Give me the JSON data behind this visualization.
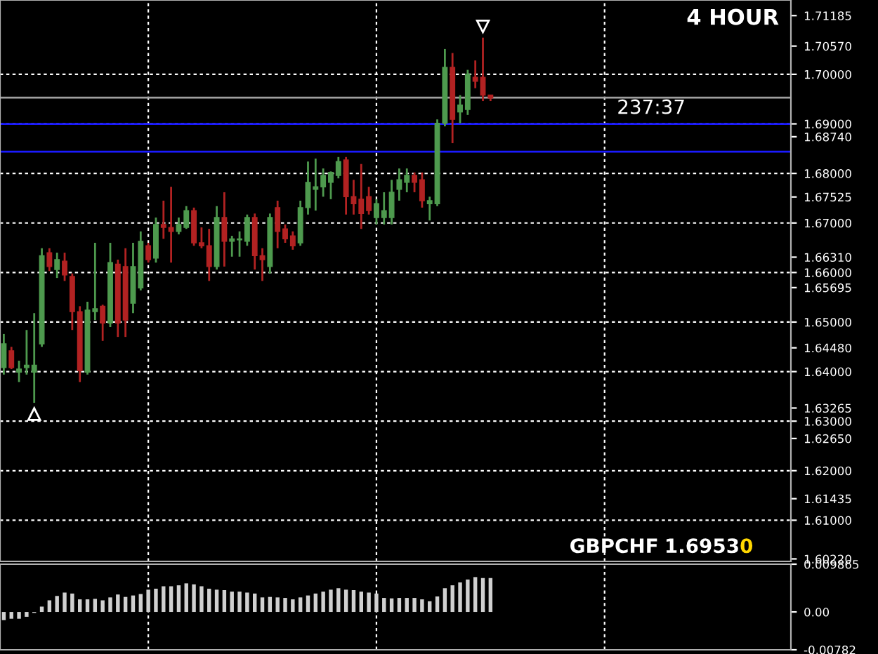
{
  "chart_data": [
    {
      "type": "candlestick",
      "title": "4 HOUR",
      "annotations": [
        "237:37",
        "GBPCHF",
        "1.69530"
      ],
      "categories": [
        null,
        null,
        null,
        null,
        null,
        null,
        null,
        null,
        null,
        null,
        null,
        null,
        null,
        null,
        null,
        null,
        null,
        null,
        null,
        null,
        null,
        null,
        null,
        null,
        null,
        null,
        null,
        null,
        null,
        null,
        null,
        null,
        null,
        null,
        null,
        null,
        null,
        null,
        null,
        null,
        null,
        null,
        null,
        null,
        null,
        null,
        null,
        null,
        null,
        null,
        null,
        null,
        null,
        null,
        null,
        null,
        null,
        null,
        null,
        null,
        null,
        null,
        null,
        null,
        null,
        null,
        null,
        null,
        null,
        null,
        null,
        null,
        null,
        null,
        null,
        null,
        null,
        null,
        null,
        null,
        null,
        null,
        null,
        null,
        null,
        null,
        null,
        null,
        null,
        null,
        null,
        null,
        null,
        null,
        null,
        null,
        null,
        null,
        null,
        null,
        null,
        null,
        null,
        null
      ],
      "ohlc": [
        [
          1.6408,
          1.6476,
          1.6394,
          1.6456
        ],
        [
          1.6442,
          1.645,
          1.6405,
          1.6408
        ],
        [
          1.6399,
          1.6422,
          1.6379,
          1.6405
        ],
        [
          1.6408,
          1.6484,
          1.6394,
          1.6413
        ],
        [
          1.6399,
          1.6518,
          1.6337,
          1.6413
        ],
        [
          1.6456,
          1.6649,
          1.645,
          1.6634
        ],
        [
          1.664,
          1.6649,
          1.6603,
          1.6612
        ],
        [
          1.6606,
          1.664,
          1.6589,
          1.6626
        ],
        [
          1.6623,
          1.664,
          1.6583,
          1.6595
        ],
        [
          1.6592,
          1.6598,
          1.6484,
          1.6521
        ],
        [
          1.6521,
          1.6532,
          1.6379,
          1.6402
        ],
        [
          1.6399,
          1.6541,
          1.6394,
          1.6524
        ],
        [
          1.6521,
          1.666,
          1.6504,
          1.6527
        ],
        [
          1.6532,
          1.6535,
          1.6462,
          1.6498
        ],
        [
          1.6498,
          1.666,
          1.649,
          1.662
        ],
        [
          1.6617,
          1.6626,
          1.647,
          1.6498
        ],
        [
          1.6612,
          1.6649,
          1.647,
          1.6504
        ],
        [
          1.6538,
          1.666,
          1.6518,
          1.6612
        ],
        [
          1.6569,
          1.6683,
          1.6564,
          1.6663
        ],
        [
          1.6654,
          1.666,
          1.662,
          1.6626
        ],
        [
          1.6629,
          1.6711,
          1.662,
          1.6697
        ],
        [
          1.6697,
          1.6745,
          1.6668,
          1.6691
        ],
        [
          1.6691,
          1.6773,
          1.662,
          1.6683
        ],
        [
          1.6683,
          1.6711,
          1.6677,
          1.6697
        ],
        [
          1.6691,
          1.6734,
          1.6688,
          1.6725
        ],
        [
          1.6725,
          1.6731,
          1.6654,
          1.666
        ],
        [
          1.666,
          1.6691,
          1.6649,
          1.6654
        ],
        [
          1.6654,
          1.6688,
          1.6583,
          1.6612
        ],
        [
          1.6612,
          1.6734,
          1.6606,
          1.6711
        ],
        [
          1.6711,
          1.6762,
          1.6612,
          1.6663
        ],
        [
          1.6663,
          1.6674,
          1.6632,
          1.6668
        ],
        [
          1.6666,
          1.6683,
          1.6632,
          1.6668
        ],
        [
          1.6663,
          1.6717,
          1.6654,
          1.6711
        ],
        [
          1.6711,
          1.6719,
          1.6606,
          1.6634
        ],
        [
          1.6634,
          1.6649,
          1.6583,
          1.6626
        ],
        [
          1.6612,
          1.6719,
          1.6598,
          1.6711
        ],
        [
          1.6731,
          1.6745,
          1.6649,
          1.6683
        ],
        [
          1.6688,
          1.6697,
          1.666,
          1.6668
        ],
        [
          1.6674,
          1.6683,
          1.6646,
          1.6654
        ],
        [
          1.666,
          1.6745,
          1.6654,
          1.6731
        ],
        [
          1.6731,
          1.6824,
          1.6717,
          1.6782
        ],
        [
          1.6768,
          1.683,
          1.6725,
          1.6773
        ],
        [
          1.6773,
          1.681,
          1.6753,
          1.6796
        ],
        [
          1.6782,
          1.6804,
          1.6748,
          1.6802
        ],
        [
          1.6796,
          1.6833,
          1.679,
          1.6824
        ],
        [
          1.6827,
          1.6833,
          1.6717,
          1.6753
        ],
        [
          1.6753,
          1.6787,
          1.6717,
          1.6739
        ],
        [
          1.6748,
          1.6819,
          1.6688,
          1.6719
        ],
        [
          1.6753,
          1.6773,
          1.6717,
          1.6725
        ],
        [
          1.6711,
          1.6748,
          1.6697,
          1.6739
        ],
        [
          1.6711,
          1.6762,
          1.6697,
          1.6725
        ],
        [
          1.6711,
          1.6787,
          1.6697,
          1.6762
        ],
        [
          1.6768,
          1.681,
          1.6745,
          1.6787
        ],
        [
          1.6782,
          1.681,
          1.6762,
          1.6796
        ],
        [
          1.6796,
          1.6802,
          1.6762,
          1.6782
        ],
        [
          1.6787,
          1.6802,
          1.6731,
          1.6745
        ],
        [
          1.6739,
          1.6753,
          1.6705,
          1.6745
        ],
        [
          1.6739,
          1.6909,
          1.6734,
          1.6901
        ],
        [
          1.6901,
          1.7051,
          1.6895,
          1.7014
        ],
        [
          1.7014,
          1.7043,
          1.6861,
          1.6909
        ],
        [
          1.6924,
          1.6958,
          1.6901,
          1.6938
        ],
        [
          1.6929,
          1.7009,
          1.6918,
          1.7
        ],
        [
          1.6994,
          1.7028,
          1.6972,
          1.6986
        ],
        [
          1.6994,
          1.7074,
          1.6946,
          1.6958
        ],
        [
          1.6958,
          1.6958,
          1.6946,
          1.6952
        ],
        null,
        null,
        null,
        null,
        null,
        null,
        null,
        null,
        null,
        null,
        null,
        null,
        null,
        null,
        null,
        null,
        null,
        null,
        null,
        null,
        null,
        null,
        null,
        null,
        null,
        null,
        null,
        null,
        null,
        null,
        null,
        null,
        null,
        null,
        null,
        null,
        null,
        null,
        null
      ],
      "colors": [
        "#4e9a4e",
        "#b22222",
        "#4e9a4e",
        "#4e9a4e",
        "#4e9a4e",
        "#4e9a4e",
        "#b22222",
        "#4e9a4e",
        "#b22222",
        "#b22222",
        "#b22222",
        "#4e9a4e",
        "#4e9a4e",
        "#b22222",
        "#4e9a4e",
        "#b22222",
        "#b22222",
        "#4e9a4e",
        "#4e9a4e",
        "#b22222",
        "#4e9a4e",
        "#b22222",
        "#b22222",
        "#4e9a4e",
        "#4e9a4e",
        "#b22222",
        "#b22222",
        "#b22222",
        "#4e9a4e",
        "#b22222",
        "#4e9a4e",
        "#4e9a4e",
        "#4e9a4e",
        "#b22222",
        "#b22222",
        "#4e9a4e",
        "#b22222",
        "#b22222",
        "#b22222",
        "#4e9a4e",
        "#4e9a4e",
        "#4e9a4e",
        "#4e9a4e",
        "#4e9a4e",
        "#4e9a4e",
        "#b22222",
        "#b22222",
        "#b22222",
        "#b22222",
        "#4e9a4e",
        "#4e9a4e",
        "#4e9a4e",
        "#4e9a4e",
        "#4e9a4e",
        "#b22222",
        "#b22222",
        "#4e9a4e",
        "#4e9a4e",
        "#4e9a4e",
        "#b22222",
        "#4e9a4e",
        "#4e9a4e",
        "#b22222",
        "#b22222",
        "#b22222",
        null,
        null,
        null,
        null,
        null,
        null,
        null,
        null,
        null,
        null,
        null,
        null,
        null,
        null,
        null,
        null,
        null,
        null,
        null,
        null,
        null,
        null,
        null,
        null,
        null,
        null,
        null,
        null,
        null,
        null,
        null,
        null,
        null,
        null,
        null,
        null,
        null,
        null,
        null
      ],
      "ylim": [
        1.6017,
        1.715
      ],
      "yticks": [
        {
          "value": 1.71185,
          "label": "1.71185"
        },
        {
          "value": 1.7057,
          "label": "1.70570"
        },
        {
          "value": 1.7,
          "label": "1.70000"
        },
        {
          "value": 1.69,
          "label": "1.69000"
        },
        {
          "value": 1.6874,
          "label": "1.68740"
        },
        {
          "value": 1.68,
          "label": "1.68000"
        },
        {
          "value": 1.67525,
          "label": "1.67525"
        },
        {
          "value": 1.67,
          "label": "1.67000"
        },
        {
          "value": 1.6631,
          "label": "1.66310"
        },
        {
          "value": 1.66,
          "label": "1.66000"
        },
        {
          "value": 1.65695,
          "label": "1.65695"
        },
        {
          "value": 1.65,
          "label": "1.65000"
        },
        {
          "value": 1.6448,
          "label": "1.64480"
        },
        {
          "value": 1.64,
          "label": "1.64000"
        },
        {
          "value": 1.63265,
          "label": "1.63265"
        },
        {
          "value": 1.63,
          "label": "1.63000"
        },
        {
          "value": 1.6265,
          "label": "1.62650"
        },
        {
          "value": 1.62,
          "label": "1.62000"
        },
        {
          "value": 1.61435,
          "label": "1.61435"
        },
        {
          "value": 1.61,
          "label": "1.61000"
        },
        {
          "value": 1.6022,
          "label": "1.60220"
        }
      ],
      "ref_lines": [
        {
          "axis": "y",
          "value": 1.6953,
          "color": "#a0a0a0"
        },
        {
          "axis": "y",
          "value": 1.69,
          "color": "#1a1aff"
        },
        {
          "axis": "y",
          "value": 1.6844,
          "color": "#1a1aff"
        }
      ],
      "grid": true,
      "tick_labels": "y"
    },
    {
      "type": "bar",
      "categories": [
        null,
        null,
        null,
        null,
        null,
        null,
        null,
        null,
        null,
        null,
        null,
        null,
        null,
        null,
        null,
        null,
        null,
        null,
        null,
        null,
        null,
        null,
        null,
        null,
        null,
        null,
        null,
        null,
        null,
        null,
        null,
        null,
        null,
        null,
        null,
        null,
        null,
        null,
        null,
        null,
        null,
        null,
        null,
        null,
        null,
        null,
        null,
        null,
        null,
        null,
        null,
        null,
        null,
        null,
        null,
        null,
        null,
        null,
        null,
        null,
        null,
        null,
        null,
        null,
        null,
        null,
        null,
        null,
        null,
        null,
        null,
        null,
        null,
        null,
        null,
        null,
        null,
        null,
        null,
        null,
        null,
        null,
        null,
        null,
        null,
        null,
        null,
        null,
        null,
        null,
        null,
        null,
        null,
        null,
        null,
        null,
        null,
        null,
        null,
        null,
        null,
        null,
        null,
        null
      ],
      "values": [
        -0.0017,
        -0.0014,
        -0.0014,
        -0.001,
        -0.0002,
        0.0011,
        0.0024,
        0.0033,
        0.004,
        0.0038,
        0.0026,
        0.0026,
        0.0027,
        0.0024,
        0.003,
        0.0036,
        0.0031,
        0.0034,
        0.0037,
        0.0046,
        0.0048,
        0.0053,
        0.0053,
        0.0055,
        0.0059,
        0.0057,
        0.0053,
        0.0048,
        0.0046,
        0.0045,
        0.0042,
        0.0042,
        0.004,
        0.0038,
        0.003,
        0.0031,
        0.003,
        0.0029,
        0.0026,
        0.003,
        0.0034,
        0.0038,
        0.0042,
        0.0046,
        0.0049,
        0.0046,
        0.0045,
        0.0042,
        0.004,
        0.0038,
        0.0029,
        0.0028,
        0.0029,
        0.0029,
        0.0029,
        0.0026,
        0.0022,
        0.0032,
        0.0049,
        0.0055,
        0.0061,
        0.0067,
        0.0072,
        0.007,
        0.007,
        null,
        null,
        null,
        null,
        null,
        null,
        null,
        null,
        null,
        null,
        null,
        null,
        null,
        null,
        null,
        null,
        null,
        null,
        null,
        null,
        null,
        null,
        null,
        null,
        null,
        null,
        null,
        null,
        null,
        null,
        null,
        null,
        null,
        null,
        null,
        null,
        null,
        null,
        null
      ],
      "color": "#d0d0d0",
      "grid": "x",
      "ylim": [
        -0.00782,
        0.009865
      ],
      "yticks": [
        0.009865,
        {
          "value": 0,
          "label": "0.00"
        },
        -0.00782
      ],
      "tick_labels": "y"
    }
  ]
}
